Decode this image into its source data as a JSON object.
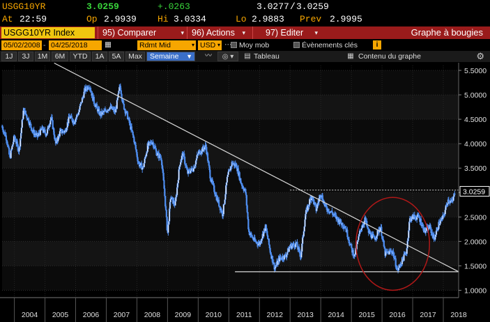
{
  "quote": {
    "ticker": "USGG10YR",
    "last": "3.0259",
    "change": "+.0263",
    "bid": "3.0277",
    "ask": "3.0259",
    "time_label": "At",
    "time": "22:59",
    "open_label": "Op",
    "open": "2.9939",
    "high_label": "Hi",
    "high": "3.0334",
    "low_label": "Lo",
    "low": "2.9883",
    "prev_label": "Prev",
    "prev": "2.9995"
  },
  "command_bar": {
    "security": "USGG10YR Index",
    "compare": "95) Comparer",
    "actions": "96) Actions",
    "edit": "97) Editer",
    "title": "Graphe à bougies"
  },
  "settings": {
    "start_date": "05/02/2008",
    "end_date": "04/25/2018",
    "field": "Rdmt Mid",
    "currency": "USD",
    "moving_avg": "Moy mob",
    "key_events": "Évènements clés",
    "info": "i"
  },
  "toolbar": {
    "periods": [
      "1J",
      "3J",
      "1M",
      "6M",
      "YTD",
      "1A",
      "5A",
      "Max"
    ],
    "interval": "Semaine",
    "table": "Tableau",
    "chart_contents": "Contenu du graphe"
  },
  "colors": {
    "amber": "#f7a600",
    "bar_red": "#9a1b1b",
    "yield_line": "#4f8ef0",
    "circle": "#b01818",
    "trendline": "#d9d9d9"
  },
  "chart_data": {
    "type": "candlestick",
    "ylim": [
      0.85,
      5.6
    ],
    "yticks": [
      "5.5000",
      "5.0000",
      "4.5000",
      "4.0000",
      "3.5000",
      "3.0000",
      "2.5000",
      "2.0000",
      "1.5000",
      "1.0000"
    ],
    "ytick_values": [
      5.5,
      5.0,
      4.5,
      4.0,
      3.5,
      3.0,
      2.5,
      2.0,
      1.5,
      1.0
    ],
    "xticks": [
      "2004",
      "2005",
      "2006",
      "2007",
      "2008",
      "2009",
      "2010",
      "2011",
      "2012",
      "2013",
      "2014",
      "2015",
      "2016",
      "2017",
      "2018"
    ],
    "x_range": [
      2003.6,
      2018.5
    ],
    "last_value_label": "3.0259",
    "last_value": 3.0259,
    "weekly_yield_path": [
      [
        2003.6,
        4.35
      ],
      [
        2003.75,
        4.1
      ],
      [
        2003.85,
        3.7
      ],
      [
        2004.0,
        4.15
      ],
      [
        2004.15,
        3.85
      ],
      [
        2004.3,
        4.7
      ],
      [
        2004.45,
        4.5
      ],
      [
        2004.6,
        4.25
      ],
      [
        2004.75,
        4.15
      ],
      [
        2004.9,
        4.3
      ],
      [
        2005.05,
        4.2
      ],
      [
        2005.2,
        4.55
      ],
      [
        2005.35,
        4.0
      ],
      [
        2005.5,
        4.25
      ],
      [
        2005.65,
        4.25
      ],
      [
        2005.8,
        4.55
      ],
      [
        2005.95,
        4.45
      ],
      [
        2006.1,
        4.65
      ],
      [
        2006.3,
        5.1
      ],
      [
        2006.45,
        5.2
      ],
      [
        2006.6,
        4.85
      ],
      [
        2006.8,
        4.6
      ],
      [
        2006.95,
        4.65
      ],
      [
        2007.1,
        4.75
      ],
      [
        2007.3,
        4.65
      ],
      [
        2007.45,
        5.2
      ],
      [
        2007.55,
        4.8
      ],
      [
        2007.7,
        4.55
      ],
      [
        2007.9,
        4.1
      ],
      [
        2008.05,
        3.6
      ],
      [
        2008.2,
        3.5
      ],
      [
        2008.35,
        3.95
      ],
      [
        2008.5,
        4.05
      ],
      [
        2008.65,
        3.8
      ],
      [
        2008.8,
        3.7
      ],
      [
        2008.9,
        3.0
      ],
      [
        2009.0,
        2.15
      ],
      [
        2009.1,
        2.9
      ],
      [
        2009.25,
        2.75
      ],
      [
        2009.4,
        3.6
      ],
      [
        2009.5,
        3.8
      ],
      [
        2009.65,
        3.4
      ],
      [
        2009.85,
        3.5
      ],
      [
        2010.0,
        3.8
      ],
      [
        2010.25,
        3.95
      ],
      [
        2010.4,
        3.3
      ],
      [
        2010.6,
        2.9
      ],
      [
        2010.8,
        2.55
      ],
      [
        2010.95,
        3.3
      ],
      [
        2011.1,
        3.6
      ],
      [
        2011.25,
        3.55
      ],
      [
        2011.4,
        3.2
      ],
      [
        2011.55,
        3.0
      ],
      [
        2011.65,
        2.2
      ],
      [
        2011.85,
        2.0
      ],
      [
        2012.0,
        1.95
      ],
      [
        2012.2,
        2.3
      ],
      [
        2012.35,
        1.8
      ],
      [
        2012.5,
        1.45
      ],
      [
        2012.65,
        1.65
      ],
      [
        2012.85,
        1.7
      ],
      [
        2013.0,
        1.9
      ],
      [
        2013.2,
        1.95
      ],
      [
        2013.35,
        1.7
      ],
      [
        2013.5,
        2.55
      ],
      [
        2013.7,
        2.95
      ],
      [
        2013.85,
        2.65
      ],
      [
        2014.0,
        3.0
      ],
      [
        2014.15,
        2.7
      ],
      [
        2014.35,
        2.6
      ],
      [
        2014.55,
        2.45
      ],
      [
        2014.8,
        2.3
      ],
      [
        2015.0,
        1.85
      ],
      [
        2015.1,
        1.7
      ],
      [
        2015.3,
        2.25
      ],
      [
        2015.45,
        2.45
      ],
      [
        2015.55,
        2.2
      ],
      [
        2015.75,
        2.05
      ],
      [
        2015.95,
        2.3
      ],
      [
        2016.1,
        1.75
      ],
      [
        2016.35,
        1.8
      ],
      [
        2016.5,
        1.4
      ],
      [
        2016.65,
        1.6
      ],
      [
        2016.8,
        1.8
      ],
      [
        2016.9,
        2.45
      ],
      [
        2017.0,
        2.5
      ],
      [
        2017.2,
        2.5
      ],
      [
        2017.4,
        2.2
      ],
      [
        2017.55,
        2.3
      ],
      [
        2017.7,
        2.05
      ],
      [
        2017.85,
        2.35
      ],
      [
        2018.0,
        2.5
      ],
      [
        2018.15,
        2.85
      ],
      [
        2018.3,
        2.8
      ],
      [
        2018.38,
        3.03
      ]
    ],
    "annotations": {
      "trendline": [
        [
          2005.3,
          5.65
        ],
        [
          2018.5,
          1.38
        ]
      ],
      "support_line": [
        [
          2011.2,
          1.38
        ],
        [
          2018.5,
          1.38
        ]
      ],
      "resistance_dotted": [
        [
          2013.0,
          3.05
        ],
        [
          2018.5,
          3.05
        ]
      ],
      "circle_center": [
        2016.35,
        1.95
      ],
      "circle_rx_years": 1.2,
      "circle_ry_yield": 0.95
    }
  }
}
